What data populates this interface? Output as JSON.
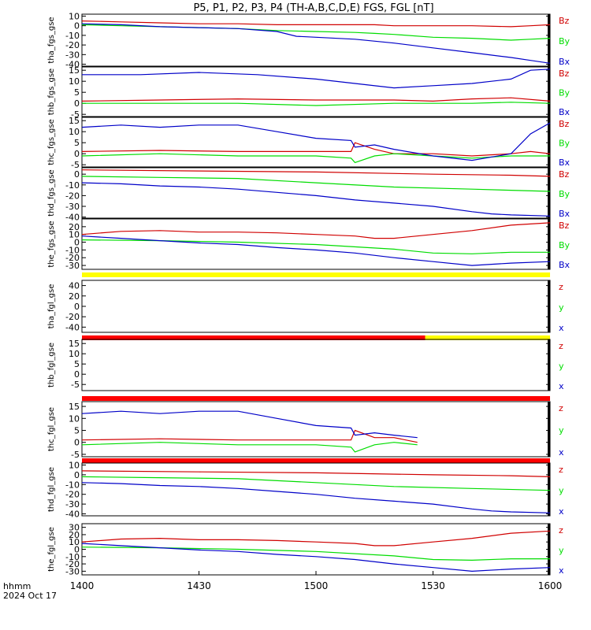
{
  "title": "P5, P1, P2, P3, P4 (TH-A,B,C,D,E) FGS, FGL [nT]",
  "footer": {
    "hhmm": "hhmm",
    "date": "2024 Oct 17"
  },
  "colors": {
    "z": "#d00000",
    "y": "#00dd00",
    "x": "#0000c8",
    "bar_yellow": "#ffff00",
    "bar_red": "#ff0000"
  },
  "chart_data": {
    "type": "line",
    "x_range": [
      "14:00",
      "16:00"
    ],
    "x_ticks": [
      {
        "t": 0,
        "label": "1400"
      },
      {
        "t": 30,
        "label": "1430"
      },
      {
        "t": 60,
        "label": "1500"
      },
      {
        "t": 90,
        "label": "1530"
      },
      {
        "t": 120,
        "label": "1600"
      }
    ],
    "panels": [
      {
        "ylabel": "tha_fgs_gse",
        "ylim": [
          -42,
          12
        ],
        "yticks": [
          10,
          0,
          -10,
          -20,
          -30,
          -40
        ],
        "legend": [
          "Bz",
          "By",
          "Bx"
        ],
        "series": [
          {
            "name": "Bz",
            "color": "z",
            "t": [
              0,
              10,
              20,
              30,
              40,
              50,
              60,
              70,
              75,
              80,
              90,
              100,
              110,
              115,
              120
            ],
            "v": [
              5,
              4,
              3,
              2,
              2,
              1,
              1,
              1,
              1,
              0,
              0,
              0,
              -1,
              0,
              1
            ]
          },
          {
            "name": "By",
            "color": "y",
            "t": [
              0,
              10,
              20,
              30,
              40,
              50,
              60,
              70,
              75,
              80,
              90,
              100,
              110,
              115,
              120
            ],
            "v": [
              1,
              0,
              -1,
              -2,
              -3,
              -5,
              -6,
              -7,
              -8,
              -9,
              -12,
              -13,
              -15,
              -14,
              -13
            ]
          },
          {
            "name": "Bx",
            "color": "x",
            "t": [
              0,
              10,
              20,
              30,
              40,
              50,
              55,
              60,
              70,
              80,
              90,
              100,
              110,
              115,
              120
            ],
            "v": [
              2,
              1,
              -1,
              -2,
              -3,
              -6,
              -11,
              -12,
              -14,
              -18,
              -23,
              -28,
              -33,
              -36,
              -39
            ]
          }
        ],
        "bars": []
      },
      {
        "ylabel": "thb_fgs_gse",
        "ylim": [
          -6,
          16.5
        ],
        "yticks": [
          15,
          10,
          5,
          0,
          -5
        ],
        "legend": [
          "Bz",
          "By",
          "Bx"
        ],
        "series": [
          {
            "name": "Bz",
            "color": "z",
            "t": [
              0,
              20,
              40,
              60,
              80,
              90,
              100,
              110,
              120
            ],
            "v": [
              1,
              1.5,
              2,
              1.5,
              1.5,
              1,
              2,
              2.5,
              1
            ]
          },
          {
            "name": "By",
            "color": "y",
            "t": [
              0,
              20,
              40,
              60,
              80,
              90,
              100,
              110,
              120
            ],
            "v": [
              0,
              0,
              0,
              -1,
              0,
              0,
              0,
              0.5,
              0
            ]
          },
          {
            "name": "Bx",
            "color": "x",
            "t": [
              0,
              15,
              30,
              45,
              60,
              70,
              80,
              90,
              100,
              105,
              110,
              115,
              120
            ],
            "v": [
              13,
              13,
              14,
              13,
              11,
              9,
              7,
              8,
              9,
              10,
              11,
              15,
              15.5
            ]
          }
        ],
        "bars": []
      },
      {
        "ylabel": "thc_fgs_gse",
        "ylim": [
          -6,
          16.5
        ],
        "yticks": [
          15,
          10,
          5,
          0,
          -5
        ],
        "legend": [
          "Bz",
          "By",
          "Bx"
        ],
        "series": [
          {
            "name": "Bz",
            "color": "z",
            "t": [
              0,
              20,
              40,
              60,
              69,
              70,
              75,
              80,
              90,
              100,
              110,
              115,
              120
            ],
            "v": [
              1,
              1.5,
              1,
              1,
              1,
              5,
              2,
              0,
              0,
              -1,
              0,
              1,
              0
            ]
          },
          {
            "name": "By",
            "color": "y",
            "t": [
              0,
              20,
              40,
              60,
              69,
              70,
              75,
              80,
              90,
              100,
              110,
              115,
              120
            ],
            "v": [
              -1,
              0,
              -1,
              -1,
              -2,
              -4,
              -1,
              0,
              -1,
              -2,
              -1,
              -1,
              -1
            ]
          },
          {
            "name": "Bx",
            "color": "x",
            "t": [
              0,
              10,
              20,
              30,
              40,
              50,
              60,
              69,
              70,
              75,
              80,
              90,
              100,
              110,
              115,
              120
            ],
            "v": [
              12,
              13,
              12,
              13,
              13,
              10,
              7,
              6,
              3,
              4,
              2,
              -1,
              -3,
              0,
              9,
              14
            ]
          }
        ],
        "bars": []
      },
      {
        "ylabel": "thd_fgs_gse",
        "ylim": [
          -41,
          6
        ],
        "yticks": [
          0,
          -10,
          -20,
          -30,
          -40
        ],
        "legend": [
          "Bz",
          "By",
          "Bx"
        ],
        "series": [
          {
            "name": "Bz",
            "color": "z",
            "t": [
              0,
              30,
              60,
              90,
              110,
              120
            ],
            "v": [
              4,
              3,
              2,
              0,
              -1,
              -2
            ]
          },
          {
            "name": "By",
            "color": "y",
            "t": [
              0,
              20,
              40,
              60,
              80,
              100,
              120
            ],
            "v": [
              -2,
              -3,
              -4,
              -8,
              -12,
              -14,
              -16
            ]
          },
          {
            "name": "Bx",
            "color": "x",
            "t": [
              0,
              10,
              20,
              30,
              40,
              50,
              60,
              70,
              80,
              90,
              100,
              105,
              110,
              120
            ],
            "v": [
              -8,
              -9,
              -11,
              -12,
              -14,
              -17,
              -20,
              -24,
              -27,
              -30,
              -35,
              -37,
              -38,
              -39
            ]
          }
        ],
        "bars": []
      },
      {
        "ylabel": "the_fgs_gse",
        "ylim": [
          -35,
          30
        ],
        "yticks": [
          20,
          10,
          0,
          -10,
          -20,
          -30
        ],
        "legend": [
          "Bz",
          "By",
          "Bx"
        ],
        "series": [
          {
            "name": "Bz",
            "color": "z",
            "t": [
              0,
              10,
              20,
              30,
              40,
              50,
              60,
              70,
              75,
              80,
              90,
              100,
              110,
              120
            ],
            "v": [
              10,
              14,
              15,
              13,
              13,
              12,
              10,
              8,
              5,
              5,
              10,
              15,
              22,
              25
            ]
          },
          {
            "name": "By",
            "color": "y",
            "t": [
              0,
              20,
              40,
              60,
              80,
              90,
              100,
              110,
              120
            ],
            "v": [
              3,
              2,
              0,
              -3,
              -9,
              -14,
              -15,
              -13,
              -13
            ]
          },
          {
            "name": "Bx",
            "color": "x",
            "t": [
              0,
              10,
              20,
              30,
              40,
              50,
              60,
              70,
              80,
              90,
              100,
              110,
              120
            ],
            "v": [
              8,
              5,
              2,
              -1,
              -3,
              -7,
              -10,
              -14,
              -20,
              -25,
              -30,
              -27,
              -25
            ]
          }
        ],
        "bars": [
          {
            "t0": 0,
            "t1": 120,
            "color": "bar_yellow"
          }
        ]
      },
      {
        "ylabel": "tha_fgl_gse",
        "ylim": [
          -50,
          50
        ],
        "yticks": [
          40,
          20,
          0,
          -20,
          -40
        ],
        "legend": [
          "z",
          "y",
          "x"
        ],
        "series": [],
        "bars": [
          {
            "t0": 0,
            "t1": 120,
            "color": "bar_yellow"
          }
        ]
      },
      {
        "ylabel": "thb_fgl_gse",
        "ylim": [
          -8,
          17
        ],
        "yticks": [
          15,
          10,
          5,
          0,
          -5
        ],
        "legend": [
          "z",
          "y",
          "x"
        ],
        "series": [],
        "bars": [
          {
            "t0": 0,
            "t1": 88,
            "color": "bar_red"
          },
          {
            "t0": 88,
            "t1": 120,
            "color": "bar_yellow"
          }
        ]
      },
      {
        "ylabel": "thc_fgl_gse",
        "ylim": [
          -6,
          17
        ],
        "yticks": [
          15,
          10,
          5,
          0,
          -5
        ],
        "legend": [
          "z",
          "y",
          "x"
        ],
        "series": [
          {
            "name": "z",
            "color": "z",
            "t": [
              0,
              20,
              40,
              60,
              69,
              70,
              75,
              80,
              86
            ],
            "v": [
              1,
              1.5,
              1,
              1,
              1,
              5,
              2,
              2,
              0
            ]
          },
          {
            "name": "y",
            "color": "y",
            "t": [
              0,
              20,
              40,
              60,
              69,
              70,
              75,
              80,
              86
            ],
            "v": [
              -1,
              0,
              -1,
              -1,
              -2,
              -4,
              -1,
              0,
              -1
            ]
          },
          {
            "name": "x",
            "color": "x",
            "t": [
              0,
              10,
              20,
              30,
              40,
              50,
              60,
              69,
              70,
              75,
              80,
              86
            ],
            "v": [
              12,
              13,
              12,
              13,
              13,
              10,
              7,
              6,
              3,
              4,
              3,
              2
            ]
          }
        ],
        "bars": [
          {
            "t0": 0,
            "t1": 120,
            "color": "bar_red"
          }
        ]
      },
      {
        "ylabel": "thd_fgl_gse",
        "ylim": [
          -42,
          12
        ],
        "yticks": [
          10,
          0,
          -10,
          -20,
          -30,
          -40
        ],
        "legend": [
          "z",
          "y",
          "x"
        ],
        "series": [
          {
            "name": "z",
            "color": "z",
            "t": [
              0,
              30,
              60,
              90,
              110,
              120
            ],
            "v": [
              4,
              3,
              2,
              0,
              -1,
              -2
            ]
          },
          {
            "name": "y",
            "color": "y",
            "t": [
              0,
              20,
              40,
              60,
              80,
              100,
              120
            ],
            "v": [
              -2,
              -3,
              -4,
              -8,
              -12,
              -14,
              -16
            ]
          },
          {
            "name": "x",
            "color": "x",
            "t": [
              0,
              10,
              20,
              30,
              40,
              50,
              60,
              70,
              80,
              90,
              100,
              105,
              110,
              120
            ],
            "v": [
              -8,
              -9,
              -11,
              -12,
              -14,
              -17,
              -20,
              -24,
              -27,
              -30,
              -35,
              -37,
              -38,
              -39
            ]
          }
        ],
        "bars": [
          {
            "t0": 0,
            "t1": 120,
            "color": "bar_red"
          }
        ]
      },
      {
        "ylabel": "the_fgl_gse",
        "ylim": [
          -35,
          35
        ],
        "yticks": [
          30,
          20,
          10,
          0,
          -10,
          -20,
          -30
        ],
        "legend": [
          "z",
          "y",
          "x"
        ],
        "series": [
          {
            "name": "z",
            "color": "z",
            "t": [
              0,
              10,
              20,
              30,
              40,
              50,
              60,
              70,
              75,
              80,
              90,
              100,
              110,
              120
            ],
            "v": [
              10,
              14,
              15,
              13,
              13,
              12,
              10,
              8,
              5,
              5,
              10,
              15,
              22,
              25
            ]
          },
          {
            "name": "y",
            "color": "y",
            "t": [
              0,
              20,
              40,
              60,
              80,
              90,
              100,
              110,
              120
            ],
            "v": [
              3,
              2,
              0,
              -3,
              -9,
              -14,
              -15,
              -13,
              -13
            ]
          },
          {
            "name": "x",
            "color": "x",
            "t": [
              0,
              10,
              20,
              30,
              40,
              50,
              60,
              70,
              80,
              90,
              100,
              110,
              120
            ],
            "v": [
              8,
              5,
              2,
              -1,
              -3,
              -7,
              -10,
              -14,
              -20,
              -25,
              -30,
              -27,
              -25
            ]
          }
        ],
        "bars": []
      }
    ]
  }
}
